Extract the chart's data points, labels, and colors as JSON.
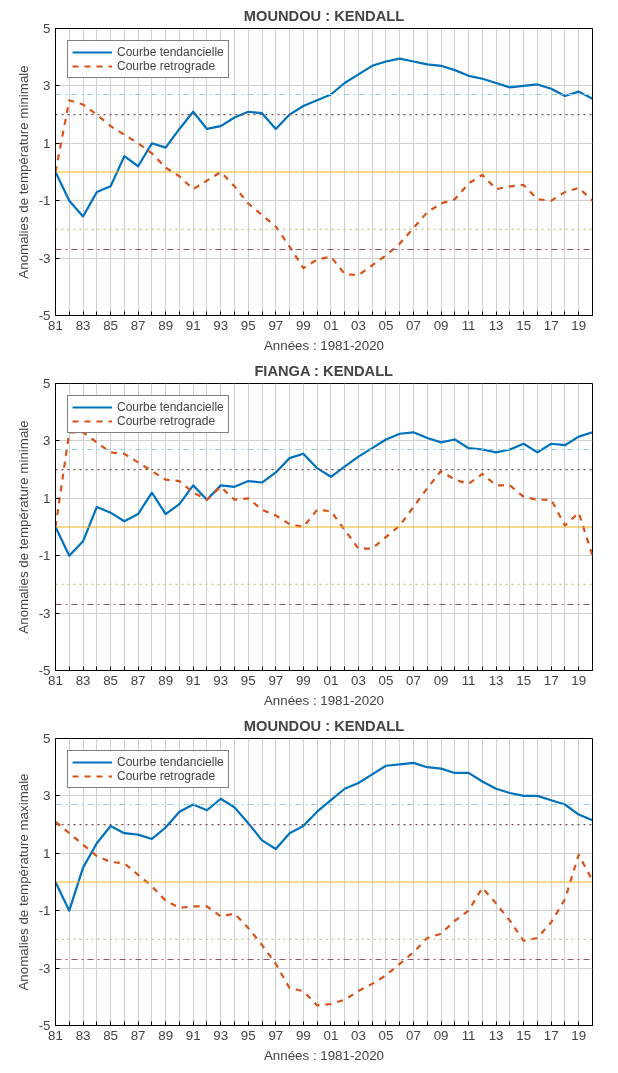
{
  "chart_data": [
    {
      "type": "line",
      "title": "MOUNDOU : KENDALL",
      "xlabel": "Années : 1981-2020",
      "ylabel": "Anomalies de température minimale",
      "x": [
        1981,
        1982,
        1983,
        1984,
        1985,
        1986,
        1987,
        1988,
        1989,
        1990,
        1991,
        1992,
        1993,
        1994,
        1995,
        1996,
        1997,
        1998,
        1999,
        2000,
        2001,
        2002,
        2003,
        2004,
        2005,
        2006,
        2007,
        2008,
        2009,
        2010,
        2011,
        2012,
        2013,
        2014,
        2015,
        2016,
        2017,
        2018,
        2019,
        2020
      ],
      "xlim": [
        1981,
        2020
      ],
      "xticks": [
        {
          "value": 1981,
          "label": "81"
        },
        {
          "value": 1982,
          "label": null
        },
        {
          "value": 1983,
          "label": "83"
        },
        {
          "value": 1984,
          "label": null
        },
        {
          "value": 1985,
          "label": "85"
        },
        {
          "value": 1986,
          "label": null
        },
        {
          "value": 1987,
          "label": "87"
        },
        {
          "value": 1988,
          "label": null
        },
        {
          "value": 1989,
          "label": "89"
        },
        {
          "value": 1990,
          "label": null
        },
        {
          "value": 1991,
          "label": "91"
        },
        {
          "value": 1992,
          "label": null
        },
        {
          "value": 1993,
          "label": "93"
        },
        {
          "value": 1994,
          "label": null
        },
        {
          "value": 1995,
          "label": "95"
        },
        {
          "value": 1996,
          "label": null
        },
        {
          "value": 1997,
          "label": "97"
        },
        {
          "value": 1998,
          "label": null
        },
        {
          "value": 1999,
          "label": "99"
        },
        {
          "value": 2000,
          "label": null
        },
        {
          "value": 2001,
          "label": "01"
        },
        {
          "value": 2002,
          "label": null
        },
        {
          "value": 2003,
          "label": "03"
        },
        {
          "value": 2004,
          "label": null
        },
        {
          "value": 2005,
          "label": "05"
        },
        {
          "value": 2006,
          "label": null
        },
        {
          "value": 2007,
          "label": "07"
        },
        {
          "value": 2008,
          "label": null
        },
        {
          "value": 2009,
          "label": "09"
        },
        {
          "value": 2010,
          "label": null
        },
        {
          "value": 2011,
          "label": "11"
        },
        {
          "value": 2012,
          "label": null
        },
        {
          "value": 2013,
          "label": "13"
        },
        {
          "value": 2014,
          "label": null
        },
        {
          "value": 2015,
          "label": "15"
        },
        {
          "value": 2016,
          "label": null
        },
        {
          "value": 2017,
          "label": "17"
        },
        {
          "value": 2018,
          "label": null
        },
        {
          "value": 2019,
          "label": "19"
        },
        {
          "value": 2020,
          "label": null
        }
      ],
      "ylim": [
        -5,
        5
      ],
      "yticks": [
        -5,
        -3,
        -1,
        1,
        3,
        5
      ],
      "grid": true,
      "legend": "top left",
      "series": [
        {
          "name": "Courbe tendancielle",
          "color": "#0072bd",
          "line_style": "solid",
          "values": [
            0,
            -1.0,
            -1.55,
            -0.7,
            -0.5,
            0.55,
            0.2,
            1.0,
            0.85,
            1.5,
            2.1,
            1.5,
            1.6,
            1.9,
            2.1,
            2.05,
            1.5,
            2.0,
            2.3,
            2.5,
            2.7,
            3.1,
            3.4,
            3.7,
            3.85,
            3.95,
            3.85,
            3.75,
            3.7,
            3.55,
            3.35,
            3.25,
            3.1,
            2.95,
            3.0,
            3.05,
            2.9,
            2.65,
            2.8,
            2.55
          ]
        },
        {
          "name": "Courbe retrograde",
          "color": "#d95319",
          "line_style": "dashed",
          "values": [
            0,
            2.5,
            2.35,
            2.0,
            1.6,
            1.3,
            1.0,
            0.65,
            0.15,
            -0.15,
            -0.6,
            -0.3,
            0.0,
            -0.5,
            -1.1,
            -1.5,
            -1.9,
            -2.6,
            -3.35,
            -3.05,
            -2.95,
            -3.55,
            -3.6,
            -3.25,
            -2.9,
            -2.5,
            -1.95,
            -1.4,
            -1.1,
            -0.95,
            -0.4,
            -0.1,
            -0.6,
            -0.5,
            -0.45,
            -0.95,
            -1.0,
            -0.7,
            -0.55,
            -1.0
          ]
        }
      ],
      "ref_lines": [
        {
          "axis": "y",
          "value": 2.7,
          "color": "#8fd3e8",
          "line_style": "dashdot"
        },
        {
          "axis": "y",
          "value": 2,
          "color": "#7a4a4a",
          "line_style": "dotted"
        },
        {
          "axis": "y",
          "value": 0,
          "color": "#edb120",
          "line_style": "solid"
        },
        {
          "axis": "y",
          "value": -2,
          "color": "#c8c080",
          "line_style": "dotted"
        },
        {
          "axis": "y",
          "value": -2.7,
          "color": "#a0506a",
          "line_style": "dashdot"
        }
      ]
    },
    {
      "type": "line",
      "title": "FIANGA : KENDALL",
      "xlabel": "Années : 1981-2020",
      "ylabel": "Anomalies de température minimale",
      "x": [
        1981,
        1982,
        1983,
        1984,
        1985,
        1986,
        1987,
        1988,
        1989,
        1990,
        1991,
        1992,
        1993,
        1994,
        1995,
        1996,
        1997,
        1998,
        1999,
        2000,
        2001,
        2002,
        2003,
        2004,
        2005,
        2006,
        2007,
        2008,
        2009,
        2010,
        2011,
        2012,
        2013,
        2014,
        2015,
        2016,
        2017,
        2018,
        2019,
        2020
      ],
      "xlim": [
        1981,
        2020
      ],
      "xticks": [
        {
          "value": 1981,
          "label": "81"
        },
        {
          "value": 1982,
          "label": null
        },
        {
          "value": 1983,
          "label": "83"
        },
        {
          "value": 1984,
          "label": null
        },
        {
          "value": 1985,
          "label": "85"
        },
        {
          "value": 1986,
          "label": null
        },
        {
          "value": 1987,
          "label": "87"
        },
        {
          "value": 1988,
          "label": null
        },
        {
          "value": 1989,
          "label": "89"
        },
        {
          "value": 1990,
          "label": null
        },
        {
          "value": 1991,
          "label": "91"
        },
        {
          "value": 1992,
          "label": null
        },
        {
          "value": 1993,
          "label": "93"
        },
        {
          "value": 1994,
          "label": null
        },
        {
          "value": 1995,
          "label": "95"
        },
        {
          "value": 1996,
          "label": null
        },
        {
          "value": 1997,
          "label": "97"
        },
        {
          "value": 1998,
          "label": null
        },
        {
          "value": 1999,
          "label": "99"
        },
        {
          "value": 2000,
          "label": null
        },
        {
          "value": 2001,
          "label": "01"
        },
        {
          "value": 2002,
          "label": null
        },
        {
          "value": 2003,
          "label": "03"
        },
        {
          "value": 2004,
          "label": null
        },
        {
          "value": 2005,
          "label": "05"
        },
        {
          "value": 2006,
          "label": null
        },
        {
          "value": 2007,
          "label": "07"
        },
        {
          "value": 2008,
          "label": null
        },
        {
          "value": 2009,
          "label": "09"
        },
        {
          "value": 2010,
          "label": null
        },
        {
          "value": 2011,
          "label": "11"
        },
        {
          "value": 2012,
          "label": null
        },
        {
          "value": 2013,
          "label": "13"
        },
        {
          "value": 2014,
          "label": null
        },
        {
          "value": 2015,
          "label": "15"
        },
        {
          "value": 2016,
          "label": null
        },
        {
          "value": 2017,
          "label": "17"
        },
        {
          "value": 2018,
          "label": null
        },
        {
          "value": 2019,
          "label": "19"
        },
        {
          "value": 2020,
          "label": null
        }
      ],
      "ylim": [
        -5,
        5
      ],
      "yticks": [
        -5,
        -3,
        -1,
        1,
        3,
        5
      ],
      "grid": true,
      "legend": "top left",
      "series": [
        {
          "name": "Courbe tendancielle",
          "color": "#0072bd",
          "line_style": "solid",
          "values": [
            0,
            -1.0,
            -0.5,
            0.7,
            0.5,
            0.2,
            0.45,
            1.2,
            0.45,
            0.8,
            1.45,
            0.95,
            1.45,
            1.4,
            1.6,
            1.55,
            1.9,
            2.4,
            2.55,
            2.05,
            1.75,
            2.1,
            2.45,
            2.75,
            3.05,
            3.25,
            3.3,
            3.1,
            2.95,
            3.05,
            2.75,
            2.7,
            2.6,
            2.7,
            2.9,
            2.6,
            2.9,
            2.85,
            3.15,
            3.3
          ]
        },
        {
          "name": "Courbe retrograde",
          "color": "#d95319",
          "line_style": "dashed",
          "values": [
            0,
            3.3,
            3.3,
            2.95,
            2.6,
            2.55,
            2.25,
            1.95,
            1.65,
            1.6,
            1.2,
            0.95,
            1.4,
            0.95,
            1.0,
            0.6,
            0.4,
            0.1,
            0.0,
            0.6,
            0.55,
            -0.1,
            -0.75,
            -0.75,
            -0.35,
            0.05,
            0.7,
            1.35,
            1.95,
            1.65,
            1.5,
            1.85,
            1.45,
            1.45,
            1.05,
            0.95,
            0.95,
            0.05,
            0.5,
            -1.0
          ]
        }
      ],
      "ref_lines": [
        {
          "axis": "y",
          "value": 2.7,
          "color": "#8fd3e8",
          "line_style": "dashdot"
        },
        {
          "axis": "y",
          "value": 2,
          "color": "#7a4a4a",
          "line_style": "dotted"
        },
        {
          "axis": "y",
          "value": 0,
          "color": "#edb120",
          "line_style": "solid"
        },
        {
          "axis": "y",
          "value": -2,
          "color": "#c8c080",
          "line_style": "dotted"
        },
        {
          "axis": "y",
          "value": -2.7,
          "color": "#a0506a",
          "line_style": "dashdot"
        }
      ]
    },
    {
      "type": "line",
      "title": "MOUNDOU : KENDALL",
      "xlabel": "Années : 1981-2020",
      "ylabel": "Anomalies de température maximale",
      "x": [
        1981,
        1982,
        1983,
        1984,
        1985,
        1986,
        1987,
        1988,
        1989,
        1990,
        1991,
        1992,
        1993,
        1994,
        1995,
        1996,
        1997,
        1998,
        1999,
        2000,
        2001,
        2002,
        2003,
        2004,
        2005,
        2006,
        2007,
        2008,
        2009,
        2010,
        2011,
        2012,
        2013,
        2014,
        2015,
        2016,
        2017,
        2018,
        2019,
        2020
      ],
      "xlim": [
        1981,
        2020
      ],
      "xticks": [
        {
          "value": 1981,
          "label": "81"
        },
        {
          "value": 1982,
          "label": null
        },
        {
          "value": 1983,
          "label": "83"
        },
        {
          "value": 1984,
          "label": null
        },
        {
          "value": 1985,
          "label": "85"
        },
        {
          "value": 1986,
          "label": null
        },
        {
          "value": 1987,
          "label": "87"
        },
        {
          "value": 1988,
          "label": null
        },
        {
          "value": 1989,
          "label": "89"
        },
        {
          "value": 1990,
          "label": null
        },
        {
          "value": 1991,
          "label": "91"
        },
        {
          "value": 1992,
          "label": null
        },
        {
          "value": 1993,
          "label": "93"
        },
        {
          "value": 1994,
          "label": null
        },
        {
          "value": 1995,
          "label": "95"
        },
        {
          "value": 1996,
          "label": null
        },
        {
          "value": 1997,
          "label": "97"
        },
        {
          "value": 1998,
          "label": null
        },
        {
          "value": 1999,
          "label": "99"
        },
        {
          "value": 2000,
          "label": null
        },
        {
          "value": 2001,
          "label": "01"
        },
        {
          "value": 2002,
          "label": null
        },
        {
          "value": 2003,
          "label": "03"
        },
        {
          "value": 2004,
          "label": null
        },
        {
          "value": 2005,
          "label": "05"
        },
        {
          "value": 2006,
          "label": null
        },
        {
          "value": 2007,
          "label": "07"
        },
        {
          "value": 2008,
          "label": null
        },
        {
          "value": 2009,
          "label": "09"
        },
        {
          "value": 2010,
          "label": null
        },
        {
          "value": 2011,
          "label": "11"
        },
        {
          "value": 2012,
          "label": null
        },
        {
          "value": 2013,
          "label": "13"
        },
        {
          "value": 2014,
          "label": null
        },
        {
          "value": 2015,
          "label": "15"
        },
        {
          "value": 2016,
          "label": null
        },
        {
          "value": 2017,
          "label": "17"
        },
        {
          "value": 2018,
          "label": null
        },
        {
          "value": 2019,
          "label": "19"
        },
        {
          "value": 2020,
          "label": null
        }
      ],
      "ylim": [
        -5,
        5
      ],
      "yticks": [
        -5,
        -3,
        -1,
        1,
        3,
        5
      ],
      "grid": true,
      "legend": "top left",
      "series": [
        {
          "name": "Courbe tendancielle",
          "color": "#0072bd",
          "line_style": "solid",
          "values": [
            0,
            -1.0,
            0.5,
            1.35,
            1.95,
            1.7,
            1.65,
            1.5,
            1.9,
            2.45,
            2.7,
            2.5,
            2.9,
            2.6,
            2.05,
            1.45,
            1.15,
            1.7,
            1.95,
            2.45,
            2.85,
            3.25,
            3.45,
            3.75,
            4.05,
            4.1,
            4.15,
            4.0,
            3.95,
            3.8,
            3.8,
            3.5,
            3.25,
            3.1,
            3.0,
            3.0,
            2.85,
            2.7,
            2.35,
            2.15
          ]
        },
        {
          "name": "Courbe retrograde",
          "color": "#d95319",
          "line_style": "dashed",
          "values": [
            2.1,
            1.7,
            1.3,
            0.9,
            0.7,
            0.65,
            0.25,
            -0.15,
            -0.65,
            -0.9,
            -0.85,
            -0.85,
            -1.2,
            -1.1,
            -1.6,
            -2.2,
            -2.85,
            -3.7,
            -3.8,
            -4.3,
            -4.25,
            -4.1,
            -3.8,
            -3.55,
            -3.25,
            -2.85,
            -2.45,
            -1.95,
            -1.8,
            -1.35,
            -1.0,
            -0.2,
            -0.75,
            -1.35,
            -2.05,
            -1.95,
            -1.4,
            -0.6,
            0.95,
            0.05
          ]
        }
      ],
      "ref_lines": [
        {
          "axis": "y",
          "value": 2.7,
          "color": "#8fd3e8",
          "line_style": "dashdot"
        },
        {
          "axis": "y",
          "value": 2,
          "color": "#7a4a4a",
          "line_style": "dotted"
        },
        {
          "axis": "y",
          "value": 0,
          "color": "#edb120",
          "line_style": "solid"
        },
        {
          "axis": "y",
          "value": -2,
          "color": "#c8c080",
          "line_style": "dotted"
        },
        {
          "axis": "y",
          "value": -2.7,
          "color": "#a0506a",
          "line_style": "dashdot"
        }
      ]
    }
  ]
}
